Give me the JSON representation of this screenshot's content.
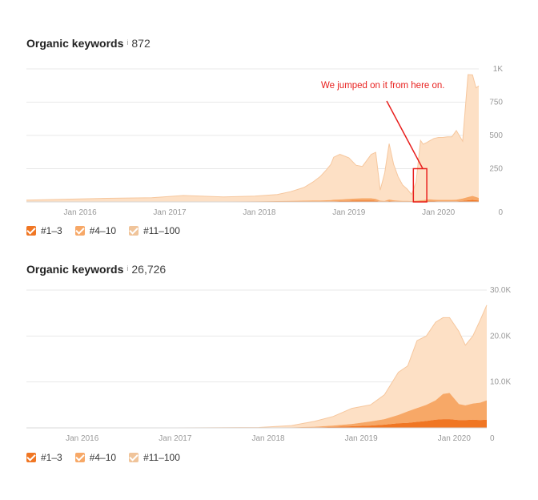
{
  "colors": {
    "series_1_3": "#f07623",
    "series_4_10": "#f7a867",
    "series_11_100": "#fde0c5",
    "grid": "#e8e8e8",
    "axis_text": "#999999",
    "annotation": "#e8201e"
  },
  "legend": [
    {
      "label": "#1–3",
      "color": "#f07623"
    },
    {
      "label": "#4–10",
      "color": "#f7a867"
    },
    {
      "label": "#11–100",
      "color": "#fde0c5"
    }
  ],
  "chart_data": [
    {
      "type": "area",
      "title": "Organic keywords",
      "info_icon": "info-icon",
      "total": "872",
      "stacked": true,
      "xlim": [
        2015.4,
        2020.45
      ],
      "ylim": [
        0,
        1000
      ],
      "x_tick_labels": [
        {
          "label": "Jan 2016",
          "x": 2016.0
        },
        {
          "label": "Jan 2017",
          "x": 2017.0
        },
        {
          "label": "Jan 2018",
          "x": 2018.0
        },
        {
          "label": "Jan 2019",
          "x": 2019.0
        },
        {
          "label": "Jan 2020",
          "x": 2020.0
        }
      ],
      "y_ticks": [
        {
          "label": "0",
          "y": 0
        },
        {
          "label": "250",
          "y": 250
        },
        {
          "label": "500",
          "y": 500
        },
        {
          "label": "750",
          "y": 750
        },
        {
          "label": "1K",
          "y": 1000
        }
      ],
      "grid": true,
      "x": [
        2015.4,
        2015.8,
        2016.3,
        2016.8,
        2017.15,
        2017.6,
        2017.95,
        2018.2,
        2018.35,
        2018.5,
        2018.6,
        2018.68,
        2018.75,
        2018.8,
        2018.83,
        2018.9,
        2019.0,
        2019.08,
        2019.15,
        2019.25,
        2019.3,
        2019.35,
        2019.4,
        2019.45,
        2019.5,
        2019.55,
        2019.6,
        2019.65,
        2019.7,
        2019.75,
        2019.8,
        2019.83,
        2019.87,
        2019.9,
        2019.95,
        2020.0,
        2020.05,
        2020.1,
        2020.15,
        2020.2,
        2020.27,
        2020.33,
        2020.38,
        2020.42,
        2020.45
      ],
      "series": [
        {
          "name": "#1–3",
          "values": [
            0,
            0,
            0,
            0,
            0,
            0,
            0,
            1,
            1,
            2,
            2,
            3,
            3,
            4,
            5,
            6,
            8,
            10,
            10,
            10,
            8,
            3,
            2,
            6,
            4,
            3,
            2,
            2,
            2,
            3,
            4,
            5,
            6,
            7,
            6,
            5,
            5,
            5,
            5,
            5,
            8,
            12,
            15,
            12,
            10
          ]
        },
        {
          "name": "#4–10",
          "values": [
            1,
            1,
            2,
            2,
            3,
            3,
            4,
            5,
            6,
            7,
            8,
            8,
            9,
            10,
            11,
            12,
            14,
            16,
            17,
            17,
            15,
            6,
            5,
            12,
            8,
            6,
            5,
            5,
            4,
            6,
            8,
            9,
            11,
            12,
            11,
            10,
            10,
            10,
            10,
            12,
            18,
            25,
            30,
            25,
            20
          ]
        },
        {
          "name": "#11–100",
          "values": [
            12,
            18,
            25,
            30,
            45,
            35,
            40,
            50,
            70,
            100,
            140,
            180,
            230,
            270,
            320,
            340,
            310,
            250,
            240,
            330,
            350,
            80,
            210,
            420,
            270,
            180,
            120,
            90,
            50,
            140,
            450,
            420,
            430,
            440,
            460,
            470,
            470,
            475,
            475,
            520,
            430,
            920,
            910,
            820,
            842
          ]
        }
      ],
      "annotation": {
        "text": "We jumped on it from here on.",
        "x0": 2019.72,
        "x1": 2019.87,
        "y0": 0,
        "y1": 250,
        "color": "#e8201e"
      }
    },
    {
      "type": "area",
      "title": "Organic keywords",
      "info_icon": "info-icon",
      "total": "26,726",
      "stacked": true,
      "xlim": [
        2015.4,
        2020.35
      ],
      "ylim": [
        0,
        30000
      ],
      "x_tick_labels": [
        {
          "label": "Jan 2016",
          "x": 2016.0
        },
        {
          "label": "Jan 2017",
          "x": 2017.0
        },
        {
          "label": "Jan 2018",
          "x": 2018.0
        },
        {
          "label": "Jan 2019",
          "x": 2019.0
        },
        {
          "label": "Jan 2020",
          "x": 2020.0
        }
      ],
      "y_ticks": [
        {
          "label": "0",
          "y": 0
        },
        {
          "label": "10.0K",
          "y": 10000
        },
        {
          "label": "20.0K",
          "y": 20000
        },
        {
          "label": "30.0K",
          "y": 30000
        }
      ],
      "grid": true,
      "x": [
        2015.4,
        2016.0,
        2017.0,
        2017.9,
        2018.25,
        2018.5,
        2018.7,
        2018.9,
        2019.1,
        2019.25,
        2019.4,
        2019.5,
        2019.6,
        2019.7,
        2019.8,
        2019.88,
        2019.95,
        2020.05,
        2020.12,
        2020.2,
        2020.28,
        2020.35
      ],
      "series": [
        {
          "name": "#1–3",
          "values": [
            0,
            0,
            0,
            0,
            30,
            100,
            200,
            350,
            500,
            700,
            1000,
            1100,
            1300,
            1500,
            1800,
            1900,
            1900,
            1700,
            1700,
            1800,
            1700,
            1800
          ]
        },
        {
          "name": "#4–10",
          "values": [
            0,
            0,
            0,
            30,
            80,
            150,
            300,
            500,
            900,
            1200,
            1800,
            2500,
            3000,
            3500,
            4200,
            5500,
            5700,
            3500,
            3200,
            3500,
            3800,
            4200
          ]
        },
        {
          "name": "#11–100",
          "values": [
            0,
            0,
            0,
            50,
            400,
            1200,
            2000,
            3400,
            3600,
            5300,
            9300,
            9900,
            14700,
            15000,
            17000,
            16600,
            16400,
            15800,
            13100,
            14700,
            18000,
            20726
          ]
        }
      ]
    }
  ]
}
